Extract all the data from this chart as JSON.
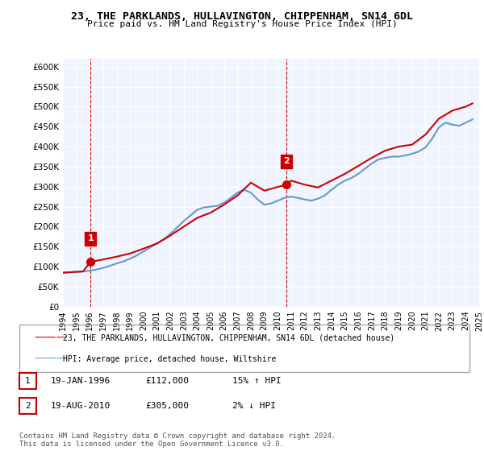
{
  "title_line1": "23, THE PARKLANDS, HULLAVINGTON, CHIPPENHAM, SN14 6DL",
  "title_line2": "Price paid vs. HM Land Registry's House Price Index (HPI)",
  "xlabel": "",
  "ylabel": "",
  "ylim": [
    0,
    620000
  ],
  "yticks": [
    0,
    50000,
    100000,
    150000,
    200000,
    250000,
    300000,
    350000,
    400000,
    450000,
    500000,
    550000,
    600000
  ],
  "ytick_labels": [
    "£0",
    "£50K",
    "£100K",
    "£150K",
    "£200K",
    "£250K",
    "£300K",
    "£350K",
    "£400K",
    "£450K",
    "£500K",
    "£550K",
    "£600K"
  ],
  "background_color": "#ffffff",
  "plot_bg_color": "#f0f4ff",
  "grid_color": "#ffffff",
  "transaction1": {
    "label": "1",
    "date": "19-JAN-1996",
    "price": 112000,
    "hpi_change": "15% ↑ HPI",
    "x": 1996.05
  },
  "transaction2": {
    "label": "2",
    "date": "19-AUG-2010",
    "price": 305000,
    "hpi_change": "2% ↓ HPI",
    "x": 2010.63
  },
  "legend_label1": "23, THE PARKLANDS, HULLAVINGTON, CHIPPENHAM, SN14 6DL (detached house)",
  "legend_label2": "HPI: Average price, detached house, Wiltshire",
  "footer_line1": "Contains HM Land Registry data © Crown copyright and database right 2024.",
  "footer_line2": "This data is licensed under the Open Government Licence v3.0.",
  "sold_color": "#cc0000",
  "hpi_color": "#6699cc",
  "annotation_box_color": "#cc0000",
  "xtick_start": 1994,
  "xtick_end": 2025,
  "xtick_step": 1,
  "hpi_data": {
    "years": [
      1994,
      1994.5,
      1995,
      1995.5,
      1996,
      1996.5,
      1997,
      1997.5,
      1998,
      1998.5,
      1999,
      1999.5,
      2000,
      2000.5,
      2001,
      2001.5,
      2002,
      2002.5,
      2003,
      2003.5,
      2004,
      2004.5,
      2005,
      2005.5,
      2006,
      2006.5,
      2007,
      2007.5,
      2008,
      2008.5,
      2009,
      2009.5,
      2010,
      2010.5,
      2011,
      2011.5,
      2012,
      2012.5,
      2013,
      2013.5,
      2014,
      2014.5,
      2015,
      2015.5,
      2016,
      2016.5,
      2017,
      2017.5,
      2018,
      2018.5,
      2019,
      2019.5,
      2020,
      2020.5,
      2021,
      2021.5,
      2022,
      2022.5,
      2023,
      2023.5,
      2024,
      2024.5
    ],
    "values": [
      85000,
      86000,
      87000,
      88000,
      90000,
      93000,
      97000,
      102000,
      108000,
      113000,
      120000,
      128000,
      138000,
      148000,
      158000,
      168000,
      182000,
      198000,
      214000,
      228000,
      242000,
      248000,
      250000,
      252000,
      260000,
      272000,
      285000,
      292000,
      285000,
      268000,
      255000,
      258000,
      265000,
      272000,
      275000,
      272000,
      268000,
      265000,
      270000,
      278000,
      292000,
      305000,
      315000,
      322000,
      332000,
      345000,
      358000,
      368000,
      372000,
      375000,
      375000,
      378000,
      382000,
      388000,
      398000,
      420000,
      448000,
      460000,
      455000,
      452000,
      460000,
      468000
    ]
  },
  "price_data": {
    "years": [
      1994,
      1994.5,
      1995,
      1995.5,
      1996.05,
      1997,
      1998,
      1999,
      2000,
      2001,
      2002,
      2003,
      2004,
      2005,
      2006,
      2007,
      2008,
      2009,
      2010.63,
      2011,
      2012,
      2013,
      2014,
      2015,
      2016,
      2017,
      2018,
      2019,
      2020,
      2021,
      2022,
      2023,
      2024,
      2024.5
    ],
    "values": [
      85000,
      86000,
      87000,
      88000,
      112000,
      118000,
      125000,
      133000,
      145000,
      158000,
      178000,
      200000,
      222000,
      235000,
      255000,
      278000,
      310000,
      290000,
      305000,
      315000,
      305000,
      298000,
      315000,
      332000,
      352000,
      372000,
      390000,
      400000,
      405000,
      430000,
      470000,
      490000,
      500000,
      508000
    ]
  }
}
